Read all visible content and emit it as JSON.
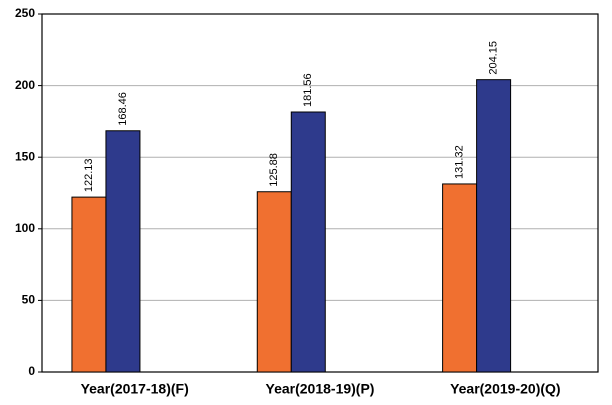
{
  "chart_data": {
    "type": "bar",
    "categories": [
      "Year(2017-18)(F)",
      "Year(2018-19)(P)",
      "Year(2019-20)(Q)"
    ],
    "series": [
      {
        "color": "#f07030",
        "values": [
          122.13,
          125.88,
          131.32
        ]
      },
      {
        "color": "#2e3a8c",
        "values": [
          168.46,
          181.56,
          204.15
        ]
      }
    ],
    "ylim": [
      0,
      250
    ],
    "yticks": [
      0,
      50,
      100,
      150,
      200,
      250
    ],
    "grid": true
  }
}
